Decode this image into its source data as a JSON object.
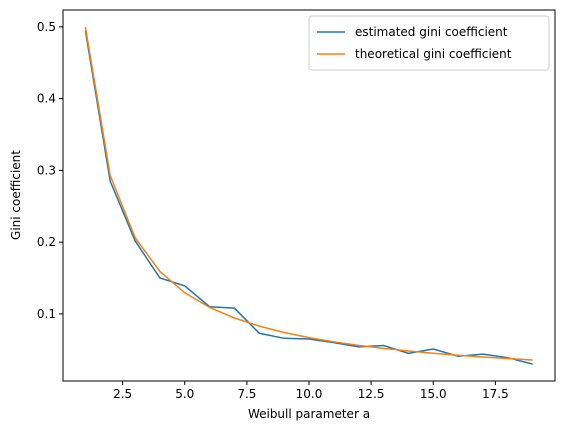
{
  "chart_data": {
    "type": "line",
    "x_label": "Weibull parameter a",
    "y_label": "Gini coefficient",
    "x": [
      1,
      2,
      3,
      4,
      5,
      6,
      7,
      8,
      9,
      10,
      11,
      12,
      13,
      14,
      15,
      16,
      17,
      18,
      19
    ],
    "series": [
      {
        "name": "estimated gini coefficient",
        "color": "#1f77b4",
        "values": [
          0.495,
          0.285,
          0.202,
          0.15,
          0.139,
          0.11,
          0.108,
          0.073,
          0.066,
          0.065,
          0.06,
          0.054,
          0.056,
          0.045,
          0.051,
          0.041,
          0.044,
          0.039,
          0.03
        ]
      },
      {
        "name": "theoretical gini coefficient",
        "color": "#ff7f0e",
        "values": [
          0.5,
          0.2929,
          0.2063,
          0.1591,
          0.1294,
          0.1091,
          0.0943,
          0.083,
          0.0741,
          0.067,
          0.0611,
          0.0561,
          0.0519,
          0.0483,
          0.0452,
          0.0424,
          0.0399,
          0.0378,
          0.0358
        ]
      }
    ],
    "xlim": [
      0.1,
      19.9
    ],
    "ylim": [
      0.0065,
      0.5235
    ],
    "xticks": [
      2.5,
      {
        "value": 5,
        "label": "5.0"
      },
      7.5,
      {
        "value": 10,
        "label": "10.0"
      },
      12.5,
      {
        "value": 15,
        "label": "15.0"
      },
      17.5
    ],
    "yticks": [
      0.1,
      0.2,
      0.3,
      0.4,
      0.5
    ],
    "legend": "upper-right",
    "grid": false
  }
}
